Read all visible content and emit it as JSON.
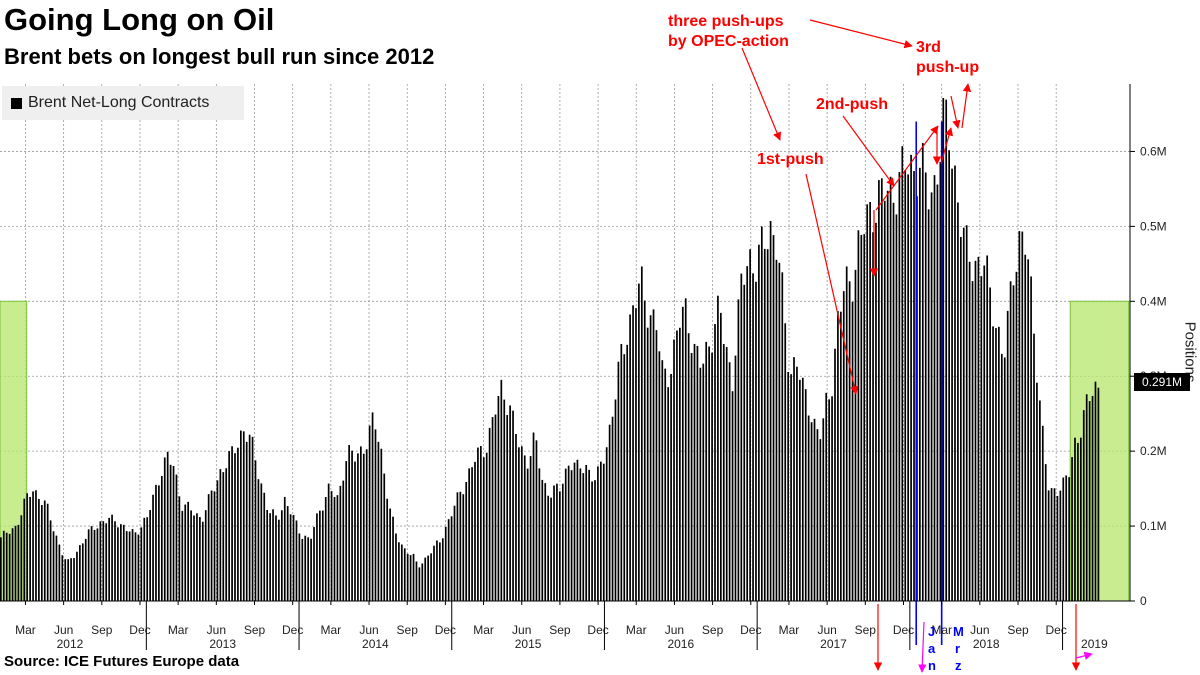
{
  "header": {
    "title": "Going Long on Oil",
    "subtitle": "Brent bets on longest bull run since 2012"
  },
  "footer": {
    "source": "Source: ICE Futures Europe data"
  },
  "legend": {
    "label": "Brent Net-Long Contracts",
    "swatch_color": "#000000"
  },
  "annotations": {
    "three_pushups": "three push-ups\nby OPEC-action",
    "first_push": "1st-push",
    "second_push": "2nd-push",
    "third_push": "3rd\npush-up",
    "jan_letters": [
      "J",
      "a",
      "n"
    ],
    "mrz_letters": [
      "M",
      "r",
      "z"
    ],
    "annotation_color": "#ff0000",
    "marker_color": "#0000ff",
    "arrow2019_color": "#ff00ff",
    "highlight_color": "#b5e56b"
  },
  "chart_data": {
    "type": "bar",
    "ylabel": "Positions",
    "yticks": [
      "0",
      "0.1M",
      "0.2M",
      "0.3M",
      "0.4M",
      "0.5M",
      "0.6M"
    ],
    "ylim": [
      0,
      690000
    ],
    "grid": true,
    "legend_position": "top-left",
    "last_value_label": "0.291M",
    "x_month_labels": [
      {
        "label": "Mar",
        "t": 2.0
      },
      {
        "label": "Jun",
        "t": 5.0
      },
      {
        "label": "Sep",
        "t": 8.0
      },
      {
        "label": "Dec",
        "t": 11.0
      },
      {
        "label": "Mar",
        "t": 14.0
      },
      {
        "label": "Jun",
        "t": 17.0
      },
      {
        "label": "Sep",
        "t": 20.0
      },
      {
        "label": "Dec",
        "t": 23.0
      },
      {
        "label": "Mar",
        "t": 26.0
      },
      {
        "label": "Jun",
        "t": 29.0
      },
      {
        "label": "Sep",
        "t": 32.0
      },
      {
        "label": "Dec",
        "t": 35.0
      },
      {
        "label": "Mar",
        "t": 38.0
      },
      {
        "label": "Jun",
        "t": 41.0
      },
      {
        "label": "Sep",
        "t": 44.0
      },
      {
        "label": "Dec",
        "t": 47.0
      },
      {
        "label": "Mar",
        "t": 50.0
      },
      {
        "label": "Jun",
        "t": 53.0
      },
      {
        "label": "Sep",
        "t": 56.0
      },
      {
        "label": "Dec",
        "t": 59.0
      },
      {
        "label": "Mar",
        "t": 62.0
      },
      {
        "label": "Jun",
        "t": 65.0
      },
      {
        "label": "Sep",
        "t": 68.0
      },
      {
        "label": "Dec",
        "t": 71.0
      },
      {
        "label": "Mar",
        "t": 74.0
      },
      {
        "label": "Jun",
        "t": 77.0
      },
      {
        "label": "Sep",
        "t": 80.0
      },
      {
        "label": "Dec",
        "t": 83.0
      }
    ],
    "x_year_labels": [
      {
        "label": "2012",
        "t": 5.5
      },
      {
        "label": "2013",
        "t": 17.5
      },
      {
        "label": "2014",
        "t": 29.5
      },
      {
        "label": "2015",
        "t": 41.5
      },
      {
        "label": "2016",
        "t": 53.5
      },
      {
        "label": "2017",
        "t": 65.5
      },
      {
        "label": "2018",
        "t": 77.5
      },
      {
        "label": "2019",
        "t": 86.0
      }
    ],
    "highlight_ranges": [
      {
        "t_start": 0.0,
        "t_end": 2.1,
        "top": 400000
      },
      {
        "t_start": 84.1,
        "t_end": 88.7,
        "top": 400000
      }
    ],
    "marker_lines": [
      {
        "t": 72.0,
        "color": "#0000ff"
      },
      {
        "t": 74.0,
        "color": "#0000ff"
      }
    ],
    "series_knots": [
      [
        0.0,
        85000
      ],
      [
        0.5,
        90000
      ],
      [
        1.2,
        100000
      ],
      [
        2.0,
        135000
      ],
      [
        2.5,
        150000
      ],
      [
        3.0,
        140000
      ],
      [
        3.6,
        125000
      ],
      [
        4.2,
        95000
      ],
      [
        4.8,
        65000
      ],
      [
        5.2,
        50000
      ],
      [
        5.7,
        60000
      ],
      [
        6.5,
        80000
      ],
      [
        7.3,
        100000
      ],
      [
        8.0,
        105000
      ],
      [
        9.0,
        110000
      ],
      [
        9.8,
        95000
      ],
      [
        10.5,
        90000
      ],
      [
        11.5,
        110000
      ],
      [
        12.0,
        140000
      ],
      [
        12.6,
        175000
      ],
      [
        13.1,
        190000
      ],
      [
        13.6,
        180000
      ],
      [
        14.2,
        130000
      ],
      [
        15.0,
        120000
      ],
      [
        15.8,
        110000
      ],
      [
        16.5,
        140000
      ],
      [
        17.3,
        175000
      ],
      [
        18.2,
        195000
      ],
      [
        19.0,
        230000
      ],
      [
        19.6,
        215000
      ],
      [
        20.3,
        170000
      ],
      [
        21.0,
        120000
      ],
      [
        21.7,
        110000
      ],
      [
        22.3,
        135000
      ],
      [
        23.0,
        110000
      ],
      [
        23.6,
        90000
      ],
      [
        24.3,
        80000
      ],
      [
        25.0,
        120000
      ],
      [
        25.8,
        150000
      ],
      [
        26.5,
        135000
      ],
      [
        27.2,
        200000
      ],
      [
        27.8,
        190000
      ],
      [
        28.5,
        205000
      ],
      [
        29.3,
        240000
      ],
      [
        29.8,
        210000
      ],
      [
        30.5,
        130000
      ],
      [
        31.0,
        90000
      ],
      [
        31.7,
        70000
      ],
      [
        32.4,
        60000
      ],
      [
        32.8,
        45000
      ],
      [
        33.5,
        60000
      ],
      [
        34.5,
        80000
      ],
      [
        35.5,
        120000
      ],
      [
        36.5,
        160000
      ],
      [
        37.3,
        190000
      ],
      [
        38.2,
        210000
      ],
      [
        38.8,
        250000
      ],
      [
        39.4,
        285000
      ],
      [
        40.0,
        260000
      ],
      [
        40.8,
        200000
      ],
      [
        41.5,
        190000
      ],
      [
        42.0,
        220000
      ],
      [
        42.5,
        160000
      ],
      [
        43.2,
        145000
      ],
      [
        44.0,
        150000
      ],
      [
        44.7,
        190000
      ],
      [
        45.3,
        175000
      ],
      [
        46.0,
        180000
      ],
      [
        46.8,
        160000
      ],
      [
        47.5,
        200000
      ],
      [
        48.0,
        245000
      ],
      [
        48.6,
        310000
      ],
      [
        49.2,
        360000
      ],
      [
        49.8,
        400000
      ],
      [
        50.3,
        420000
      ],
      [
        50.9,
        390000
      ],
      [
        51.5,
        370000
      ],
      [
        52.0,
        300000
      ],
      [
        52.6,
        310000
      ],
      [
        53.3,
        370000
      ],
      [
        53.9,
        390000
      ],
      [
        54.5,
        335000
      ],
      [
        55.1,
        310000
      ],
      [
        55.8,
        355000
      ],
      [
        56.5,
        390000
      ],
      [
        56.9,
        340000
      ],
      [
        57.5,
        300000
      ],
      [
        58.2,
        420000
      ],
      [
        58.8,
        460000
      ],
      [
        59.4,
        450000
      ],
      [
        60.0,
        475000
      ],
      [
        60.5,
        500000
      ],
      [
        61.0,
        480000
      ],
      [
        61.5,
        390000
      ],
      [
        62.0,
        300000
      ],
      [
        62.5,
        330000
      ],
      [
        63.0,
        280000
      ],
      [
        63.5,
        260000
      ],
      [
        64.0,
        235000
      ],
      [
        64.5,
        220000
      ],
      [
        64.9,
        265000
      ],
      [
        65.3,
        290000
      ],
      [
        65.8,
        380000
      ],
      [
        66.3,
        415000
      ],
      [
        66.9,
        430000
      ],
      [
        67.4,
        475000
      ],
      [
        67.9,
        500000
      ],
      [
        68.4,
        520000
      ],
      [
        68.9,
        540000
      ],
      [
        69.4,
        545000
      ],
      [
        69.8,
        540000
      ],
      [
        70.3,
        555000
      ],
      [
        70.8,
        570000
      ],
      [
        71.3,
        580000
      ],
      [
        71.8,
        575000
      ],
      [
        72.2,
        590000
      ],
      [
        72.6,
        560000
      ],
      [
        73.0,
        535000
      ],
      [
        73.4,
        560000
      ],
      [
        73.8,
        610000
      ],
      [
        74.1,
        640000
      ],
      [
        74.5,
        620000
      ],
      [
        74.9,
        580000
      ],
      [
        75.3,
        530000
      ],
      [
        75.8,
        470000
      ],
      [
        76.2,
        450000
      ],
      [
        76.7,
        455000
      ],
      [
        77.3,
        450000
      ],
      [
        77.8,
        400000
      ],
      [
        78.3,
        370000
      ],
      [
        78.8,
        320000
      ],
      [
        79.2,
        380000
      ],
      [
        79.7,
        460000
      ],
      [
        80.1,
        490000
      ],
      [
        80.6,
        470000
      ],
      [
        81.0,
        400000
      ],
      [
        81.5,
        300000
      ],
      [
        82.0,
        200000
      ],
      [
        82.4,
        140000
      ],
      [
        82.9,
        150000
      ],
      [
        83.4,
        155000
      ],
      [
        84.0,
        170000
      ],
      [
        84.4,
        210000
      ],
      [
        84.9,
        235000
      ],
      [
        85.4,
        265000
      ],
      [
        85.9,
        280000
      ],
      [
        86.3,
        291000
      ]
    ]
  }
}
